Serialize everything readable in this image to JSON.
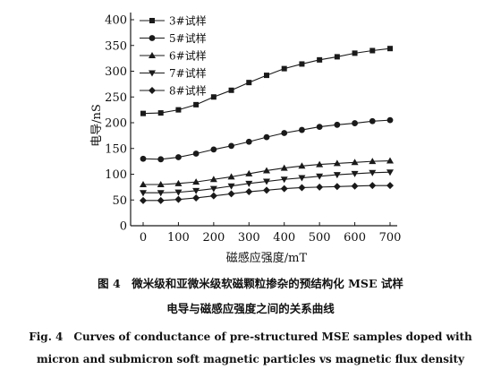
{
  "chart_data": {
    "type": "line",
    "title": "",
    "xlabel": "磁感应强度/mT",
    "ylabel": "电导/nS",
    "xlim": [
      0,
      700
    ],
    "ylim": [
      0,
      400
    ],
    "xticks": [
      0,
      100,
      200,
      300,
      400,
      500,
      600,
      700
    ],
    "yticks": [
      0,
      50,
      100,
      150,
      200,
      250,
      300,
      350,
      400
    ],
    "grid": false,
    "legend_position": "top-left",
    "x": [
      0,
      50,
      100,
      150,
      200,
      250,
      300,
      350,
      400,
      450,
      500,
      550,
      600,
      650,
      700
    ],
    "series": [
      {
        "name": "3#试样",
        "marker": "square",
        "values": [
          218,
          219,
          225,
          235,
          250,
          263,
          278,
          292,
          305,
          314,
          322,
          328,
          335,
          340,
          344
        ]
      },
      {
        "name": "5#试样",
        "marker": "circle",
        "values": [
          130,
          129,
          133,
          140,
          148,
          155,
          163,
          172,
          180,
          186,
          192,
          196,
          199,
          203,
          205
        ]
      },
      {
        "name": "6#试样",
        "marker": "triangle-up",
        "values": [
          80,
          80,
          82,
          85,
          90,
          95,
          101,
          107,
          112,
          116,
          119,
          121,
          123,
          125,
          126
        ]
      },
      {
        "name": "7#试样",
        "marker": "triangle-down",
        "values": [
          64,
          64,
          65,
          68,
          72,
          77,
          82,
          86,
          90,
          93,
          96,
          99,
          101,
          103,
          104
        ]
      },
      {
        "name": "8#试样",
        "marker": "diamond",
        "values": [
          49,
          49,
          51,
          54,
          58,
          62,
          66,
          69,
          72,
          74,
          75,
          76,
          77,
          78,
          78
        ]
      }
    ]
  },
  "caption": {
    "cn_line1": "图 4　微米级和亚微米级软磁颗粒掺杂的预结构化 MSE 试样",
    "cn_line2": "电导与磁感应强度之间的关系曲线",
    "en_line1": "Fig. 4　Curves of conductance of pre-structured MSE samples doped with",
    "en_line2": "micron and submicron soft magnetic particles vs magnetic flux density"
  },
  "colors": {
    "line": "#1a1a1a",
    "background": "#ffffff"
  }
}
